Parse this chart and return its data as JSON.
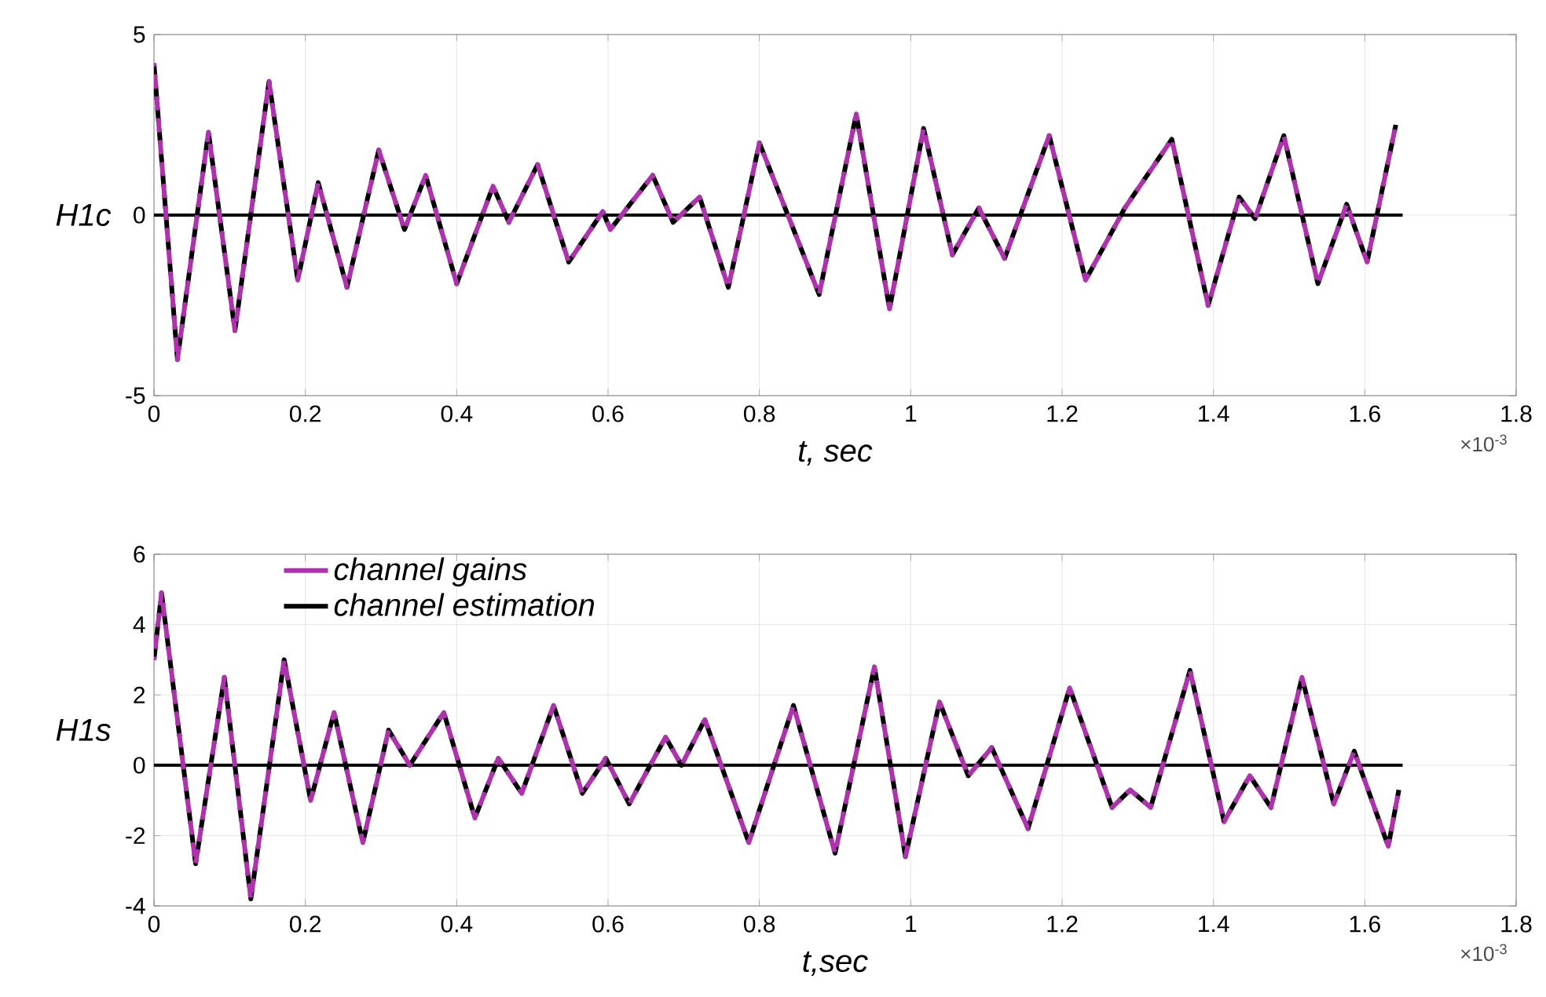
{
  "chart_data": [
    {
      "type": "line",
      "xlabel": "t, sec",
      "ylabel": "H1c",
      "xlim": [
        0,
        1.8
      ],
      "ylim": [
        -5,
        5
      ],
      "xticks": [
        0,
        0.2,
        0.4,
        0.6,
        0.8,
        1,
        1.2,
        1.4,
        1.6,
        1.8
      ],
      "yticks": [
        -5,
        0,
        5
      ],
      "grid": true,
      "legend": false,
      "annotations": [
        "×10$^{-3}$"
      ],
      "series": [
        {
          "color": "#000000",
          "line_style": "solid",
          "x": [
            0,
            1.65
          ],
          "values": [
            0,
            0
          ]
        },
        {
          "color": "#000000",
          "line_style": "dashed",
          "x": [
            0,
            0.031,
            0.072,
            0.107,
            0.152,
            0.19,
            0.217,
            0.255,
            0.297,
            0.331,
            0.359,
            0.4,
            0.448,
            0.469,
            0.507,
            0.548,
            0.593,
            0.603,
            0.659,
            0.686,
            0.721,
            0.759,
            0.8,
            0.879,
            0.928,
            0.972,
            1.017,
            1.055,
            1.09,
            1.124,
            1.183,
            1.231,
            1.283,
            1.345,
            1.393,
            1.434,
            1.455,
            1.493,
            1.538,
            1.576,
            1.603,
            1.641
          ],
          "values": [
            4.2,
            -4.0,
            2.3,
            -3.2,
            3.7,
            -1.8,
            0.9,
            -2.0,
            1.8,
            -0.4,
            1.1,
            -1.9,
            0.8,
            -0.2,
            1.4,
            -1.3,
            0.1,
            -0.4,
            1.1,
            -0.2,
            0.5,
            -2.0,
            2.0,
            -2.2,
            2.8,
            -2.6,
            2.4,
            -1.1,
            0.2,
            -1.2,
            2.2,
            -1.8,
            0.2,
            2.1,
            -2.5,
            0.5,
            -0.1,
            2.2,
            -1.9,
            0.3,
            -1.3,
            2.5
          ]
        },
        {
          "color": "#b030b0",
          "line_style": "dashed",
          "x": [
            0,
            0.031,
            0.072,
            0.107,
            0.152,
            0.19,
            0.217,
            0.255,
            0.297,
            0.331,
            0.359,
            0.4,
            0.448,
            0.469,
            0.507,
            0.548,
            0.593,
            0.603,
            0.659,
            0.686,
            0.721,
            0.759,
            0.8,
            0.879,
            0.928,
            0.972,
            1.017,
            1.055,
            1.09,
            1.124,
            1.183,
            1.231,
            1.283,
            1.345,
            1.393,
            1.434,
            1.455,
            1.493,
            1.538,
            1.576,
            1.603,
            1.641
          ],
          "values": [
            4.2,
            -4.0,
            2.3,
            -3.2,
            3.7,
            -1.8,
            0.9,
            -2.0,
            1.8,
            -0.4,
            1.1,
            -1.9,
            0.8,
            -0.2,
            1.4,
            -1.3,
            0.1,
            -0.4,
            1.1,
            -0.2,
            0.5,
            -2.0,
            2.0,
            -2.2,
            2.8,
            -2.6,
            2.4,
            -1.1,
            0.2,
            -1.2,
            2.2,
            -1.8,
            0.2,
            2.1,
            -2.5,
            0.5,
            -0.1,
            2.2,
            -1.9,
            0.3,
            -1.3,
            2.5
          ]
        }
      ]
    },
    {
      "type": "line",
      "xlabel": "t,sec",
      "ylabel": "H1s",
      "xlim": [
        0,
        1.8
      ],
      "ylim": [
        -4,
        6
      ],
      "xticks": [
        0,
        0.2,
        0.4,
        0.6,
        0.8,
        1,
        1.2,
        1.4,
        1.6,
        1.8
      ],
      "yticks": [
        -4,
        -2,
        0,
        2,
        4,
        6
      ],
      "grid": true,
      "legend": "top left",
      "annotations": [
        "×10$^{-3}$"
      ],
      "series": [
        {
          "color": "#000000",
          "line_style": "solid",
          "x": [
            0,
            1.65
          ],
          "values": [
            0,
            0
          ]
        },
        {
          "name": "channel estimation",
          "color": "#000000",
          "line_style": "dashed",
          "x": [
            0,
            0.01,
            0.055,
            0.093,
            0.128,
            0.172,
            0.207,
            0.238,
            0.276,
            0.31,
            0.338,
            0.383,
            0.424,
            0.455,
            0.486,
            0.528,
            0.566,
            0.597,
            0.628,
            0.676,
            0.697,
            0.728,
            0.786,
            0.845,
            0.9,
            0.952,
            0.993,
            1.038,
            1.076,
            1.107,
            1.155,
            1.21,
            1.266,
            1.29,
            1.317,
            1.369,
            1.414,
            1.448,
            1.476,
            1.517,
            1.559,
            1.586,
            1.631,
            1.645
          ],
          "values": [
            3.0,
            4.9,
            -2.8,
            2.5,
            -3.8,
            3.0,
            -1.0,
            1.5,
            -2.2,
            1.0,
            0.0,
            1.5,
            -1.5,
            0.2,
            -0.8,
            1.7,
            -0.8,
            0.2,
            -1.1,
            0.8,
            0.0,
            1.3,
            -2.2,
            1.7,
            -2.5,
            2.8,
            -2.6,
            1.8,
            -0.3,
            0.5,
            -1.8,
            2.2,
            -1.2,
            -0.7,
            -1.2,
            2.7,
            -1.6,
            -0.3,
            -1.2,
            2.5,
            -1.1,
            0.4,
            -2.3,
            -0.7
          ]
        },
        {
          "name": "channel gains",
          "color": "#b030b0",
          "line_style": "dashed",
          "x": [
            0,
            0.01,
            0.055,
            0.093,
            0.128,
            0.172,
            0.207,
            0.238,
            0.276,
            0.31,
            0.338,
            0.383,
            0.424,
            0.455,
            0.486,
            0.528,
            0.566,
            0.597,
            0.628,
            0.676,
            0.697,
            0.728,
            0.786,
            0.845,
            0.9,
            0.952,
            0.993,
            1.038,
            1.076,
            1.107,
            1.155,
            1.21,
            1.266,
            1.29,
            1.317,
            1.369,
            1.414,
            1.448,
            1.476,
            1.517,
            1.559,
            1.586,
            1.631,
            1.645
          ],
          "values": [
            3.0,
            4.9,
            -2.8,
            2.5,
            -3.8,
            3.0,
            -1.0,
            1.5,
            -2.2,
            1.0,
            0.0,
            1.5,
            -1.5,
            0.2,
            -0.8,
            1.7,
            -0.8,
            0.2,
            -1.1,
            0.8,
            0.0,
            1.3,
            -2.2,
            1.7,
            -2.5,
            2.8,
            -2.6,
            1.8,
            -0.3,
            0.5,
            -1.8,
            2.2,
            -1.2,
            -0.7,
            -1.2,
            2.7,
            -1.6,
            -0.3,
            -1.2,
            2.5,
            -1.1,
            0.4,
            -2.3,
            -0.7
          ]
        }
      ]
    }
  ]
}
